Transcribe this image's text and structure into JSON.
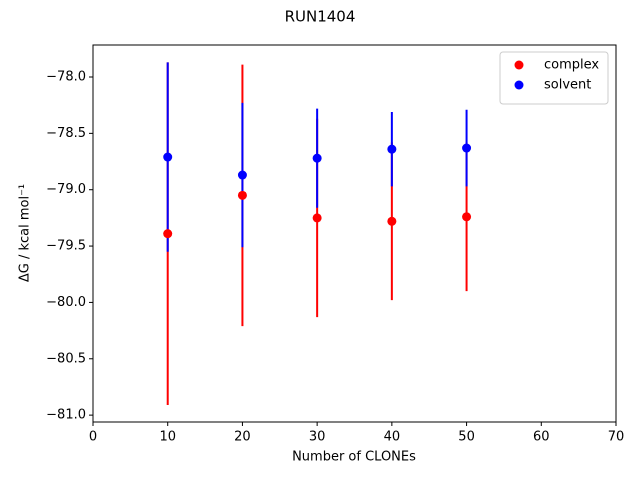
{
  "chart_data": {
    "type": "errorbar-scatter",
    "title": "RUN1404",
    "x_label": "Number of CLONEs",
    "y_label": "ΔG / kcal mol⁻¹",
    "x": [
      10,
      20,
      30,
      40,
      50
    ],
    "series": [
      {
        "name": "complex",
        "color": "#ff0000",
        "values": [
          -79.39,
          -79.05,
          -79.25,
          -79.28,
          -79.24
        ],
        "errors": [
          1.52,
          1.16,
          0.88,
          0.7,
          0.66
        ]
      },
      {
        "name": "solvent",
        "color": "#0000ff",
        "values": [
          -78.71,
          -78.87,
          -78.72,
          -78.64,
          -78.63
        ],
        "errors": [
          0.84,
          0.64,
          0.44,
          0.33,
          0.34
        ]
      }
    ],
    "xlim": [
      0,
      70
    ],
    "ylim": [
      -81.061,
      -77.716
    ],
    "xticks": [
      0,
      10,
      20,
      30,
      40,
      50,
      60,
      70
    ],
    "yticks": [
      {
        "value": -78.0,
        "label": "−78.0"
      },
      {
        "value": -78.5,
        "label": "−78.5"
      },
      {
        "value": -79.0,
        "label": "−79.0"
      },
      {
        "value": -79.5,
        "label": "−79.5"
      },
      {
        "value": -80.0,
        "label": "−80.0"
      },
      {
        "value": -80.5,
        "label": "−80.5"
      },
      {
        "value": -81.0,
        "label": "−81.0"
      }
    ],
    "legend": "upper right",
    "grid": false
  }
}
